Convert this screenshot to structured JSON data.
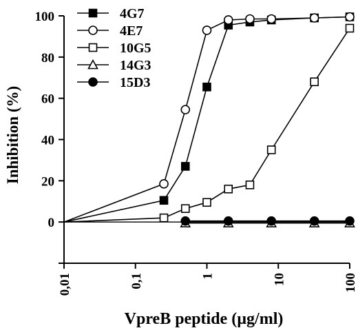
{
  "chart_data": {
    "type": "line",
    "xscale": "log",
    "xlim": [
      0.01,
      100
    ],
    "ylim": [
      -20,
      100
    ],
    "xlabel": "VpreB peptide (µg/ml)",
    "ylabel": "Inhibition (%)",
    "xticks": [
      {
        "value": 0.01,
        "label": "0,01"
      },
      {
        "value": 0.1,
        "label": "0,1"
      },
      {
        "value": 1,
        "label": "1"
      },
      {
        "value": 10,
        "label": "10"
      },
      {
        "value": 100,
        "label": "100"
      }
    ],
    "yticks": [
      {
        "value": 0,
        "label": "0"
      },
      {
        "value": 20,
        "label": "20"
      },
      {
        "value": 40,
        "label": "40"
      },
      {
        "value": 60,
        "label": "60"
      },
      {
        "value": 80,
        "label": "80"
      },
      {
        "value": 100,
        "label": "100"
      }
    ],
    "legend_position": "top-left",
    "series": [
      {
        "name": "4G7",
        "marker": "square-filled",
        "x": [
          0.01,
          0.25,
          0.5,
          1,
          2,
          4,
          8,
          32,
          100
        ],
        "y": [
          0,
          10.5,
          27,
          65.5,
          95.5,
          97,
          98,
          99,
          99.5
        ]
      },
      {
        "name": "4E7",
        "marker": "circle-open",
        "x": [
          0.01,
          0.25,
          0.5,
          1,
          2,
          4,
          8,
          32,
          100
        ],
        "y": [
          0,
          18.5,
          54.5,
          93,
          98,
          98.5,
          98.5,
          99,
          99.5
        ]
      },
      {
        "name": "10G5",
        "marker": "square-open",
        "x": [
          0.01,
          0.25,
          0.5,
          1,
          2,
          4,
          8,
          32,
          100
        ],
        "y": [
          0,
          2,
          6.5,
          9.5,
          16,
          18,
          35,
          68,
          94
        ]
      },
      {
        "name": "14G3",
        "marker": "triangle-open",
        "x": [
          0.5,
          2,
          8,
          32,
          100
        ],
        "y": [
          -0.5,
          -0.5,
          -0.5,
          -0.5,
          -0.5
        ]
      },
      {
        "name": "15D3",
        "marker": "circle-filled",
        "x": [
          0.5,
          2,
          8,
          32,
          100
        ],
        "y": [
          0.5,
          0.5,
          0.5,
          0.5,
          0.5
        ]
      }
    ]
  }
}
